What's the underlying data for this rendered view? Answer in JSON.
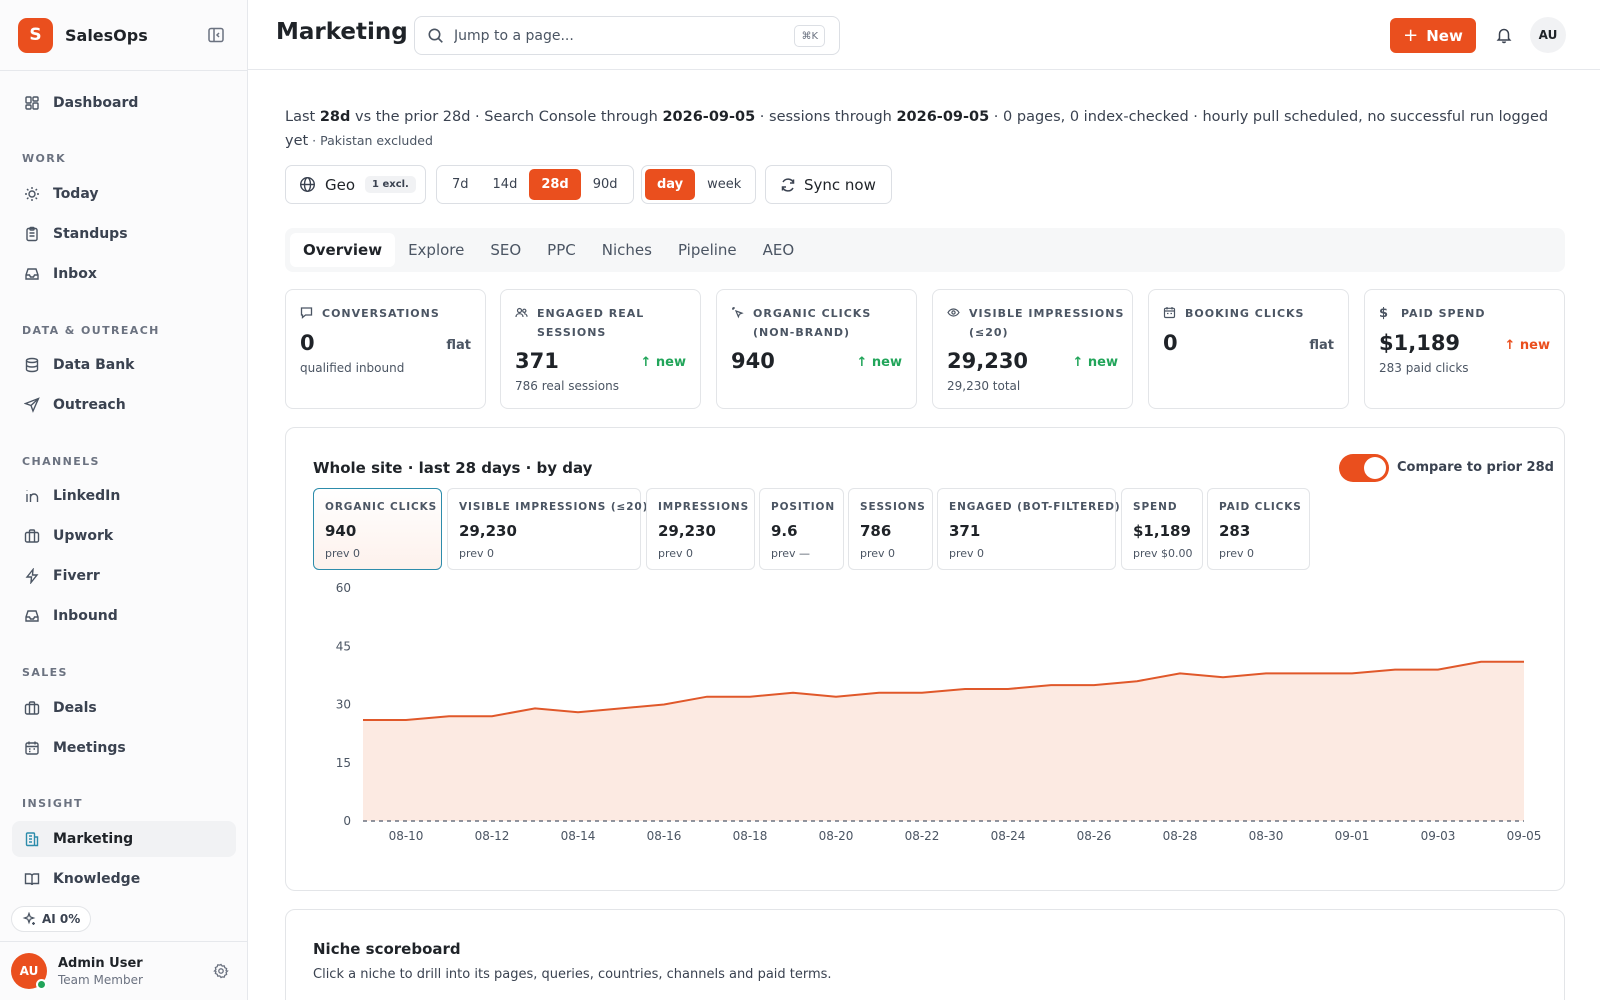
{
  "app": {
    "logo_letter": "S",
    "name": "SalesOps"
  },
  "sidebar": {
    "top_item": {
      "label": "Dashboard"
    },
    "sections": {
      "work": "WORK",
      "data_outreach": "DATA & OUTREACH",
      "channels": "CHANNELS",
      "sales": "SALES",
      "insight": "INSIGHT"
    },
    "items": {
      "today": "Today",
      "standups": "Standups",
      "inbox": "Inbox",
      "data_bank": "Data Bank",
      "outreach": "Outreach",
      "linkedin": "LinkedIn",
      "upwork": "Upwork",
      "fiverr": "Fiverr",
      "inbound": "Inbound",
      "deals": "Deals",
      "meetings": "Meetings",
      "marketing": "Marketing",
      "knowledge": "Knowledge"
    },
    "ai_pill": "AI 0%",
    "user": {
      "initials": "AU",
      "name": "Admin User",
      "role": "Team Member"
    }
  },
  "header": {
    "title": "Marketing",
    "search_placeholder": "Jump to a page...",
    "search_shortcut": "⌘K",
    "new_button": "New",
    "avatar_initials": "AU"
  },
  "summary": {
    "p1": "Last ",
    "b1": "28d",
    "p2": " vs the prior 28d · Search Console through ",
    "b2": "2026-09-05",
    "p3": " · sessions through ",
    "b3": "2026-09-05",
    "p4": " · 0 pages, 0 index-checked · hourly pull scheduled, no successful run logged yet",
    "small": " · Pakistan excluded"
  },
  "controls": {
    "geo_label": "Geo",
    "geo_badge": "1 excl.",
    "ranges": [
      "7d",
      "14d",
      "28d",
      "90d"
    ],
    "range_selected": "28d",
    "grain": [
      "day",
      "week"
    ],
    "grain_selected": "day",
    "sync_label": "Sync now"
  },
  "tabs": [
    "Overview",
    "Explore",
    "SEO",
    "PPC",
    "Niches",
    "Pipeline",
    "AEO"
  ],
  "tab_selected": "Overview",
  "kpis": [
    {
      "label": "CONVERSATIONS",
      "value": "0",
      "delta": "flat",
      "sub": "qualified inbound",
      "icon": "chat-icon"
    },
    {
      "label": "ENGAGED REAL SESSIONS",
      "value": "371",
      "delta": "new",
      "sub": "786 real sessions",
      "icon": "users-icon"
    },
    {
      "label": "ORGANIC CLICKS (NON-BRAND)",
      "value": "940",
      "delta": "new",
      "sub": "",
      "icon": "cursor-click-icon"
    },
    {
      "label": "VISIBLE IMPRESSIONS (≤20)",
      "value": "29,230",
      "delta": "new",
      "sub": "29,230 total",
      "icon": "eye-icon"
    },
    {
      "label": "BOOKING CLICKS",
      "value": "0",
      "delta": "flat",
      "sub": "",
      "icon": "calendar-icon"
    },
    {
      "label": "PAID SPEND",
      "value": "$1,189",
      "delta": "new",
      "sub": "283 paid clicks",
      "icon": "dollar-icon"
    }
  ],
  "chart_section": {
    "title": "Whole site · last 28 days · by day",
    "compare_label": "Compare to prior 28d",
    "compare_on": true,
    "metrics": [
      {
        "label": "ORGANIC CLICKS",
        "value": "940",
        "prev": "prev 0"
      },
      {
        "label": "VISIBLE IMPRESSIONS (≤20)",
        "value": "29,230",
        "prev": "prev 0"
      },
      {
        "label": "IMPRESSIONS",
        "value": "29,230",
        "prev": "prev 0"
      },
      {
        "label": "POSITION",
        "value": "9.6",
        "prev": "prev —"
      },
      {
        "label": "SESSIONS",
        "value": "786",
        "prev": "prev 0"
      },
      {
        "label": "ENGAGED (BOT-FILTERED)",
        "value": "371",
        "prev": "prev 0"
      },
      {
        "label": "SPEND",
        "value": "$1,189",
        "prev": "prev $0.00"
      },
      {
        "label": "PAID CLICKS",
        "value": "283",
        "prev": "prev 0"
      }
    ],
    "metric_selected": "ORGANIC CLICKS"
  },
  "chart_data": {
    "type": "area",
    "title": "",
    "xlabel": "",
    "ylabel": "",
    "ylim": [
      0,
      60
    ],
    "yticks": [
      0,
      15,
      30,
      45,
      60
    ],
    "x_tick_labels": [
      "08-10",
      "08-12",
      "08-14",
      "08-16",
      "08-18",
      "08-20",
      "08-22",
      "08-24",
      "08-26",
      "08-28",
      "08-30",
      "09-01",
      "09-03",
      "09-05"
    ],
    "x": [
      "08-09",
      "08-10",
      "08-11",
      "08-12",
      "08-13",
      "08-14",
      "08-15",
      "08-16",
      "08-17",
      "08-18",
      "08-19",
      "08-20",
      "08-21",
      "08-22",
      "08-23",
      "08-24",
      "08-25",
      "08-26",
      "08-27",
      "08-28",
      "08-29",
      "08-30",
      "08-31",
      "09-01",
      "09-02",
      "09-03",
      "09-04",
      "09-05"
    ],
    "series": [
      {
        "values": [
          26,
          26,
          27,
          27,
          29,
          28,
          29,
          30,
          32,
          32,
          33,
          32,
          33,
          33,
          34,
          34,
          35,
          35,
          36,
          38,
          37,
          38,
          38,
          38,
          39,
          39,
          41,
          41
        ]
      },
      {
        "values": [
          0,
          0,
          0,
          0,
          0,
          0,
          0,
          0,
          0,
          0,
          0,
          0,
          0,
          0,
          0,
          0,
          0,
          0,
          0,
          0,
          0,
          0,
          0,
          0,
          0,
          0,
          0,
          0
        ],
        "style": "dashed"
      }
    ],
    "colors": {
      "line": "#e0582a",
      "fill": "#fbe3d8",
      "compare": "#6b7280"
    },
    "grid": false
  },
  "niche": {
    "title": "Niche scoreboard",
    "subtitle": "Click a niche to drill into its pages, queries, countries, channels and paid terms."
  },
  "colors": {
    "accent": "#ea4f1e",
    "selected_border": "#2d8cab",
    "up": "#22a55a"
  }
}
